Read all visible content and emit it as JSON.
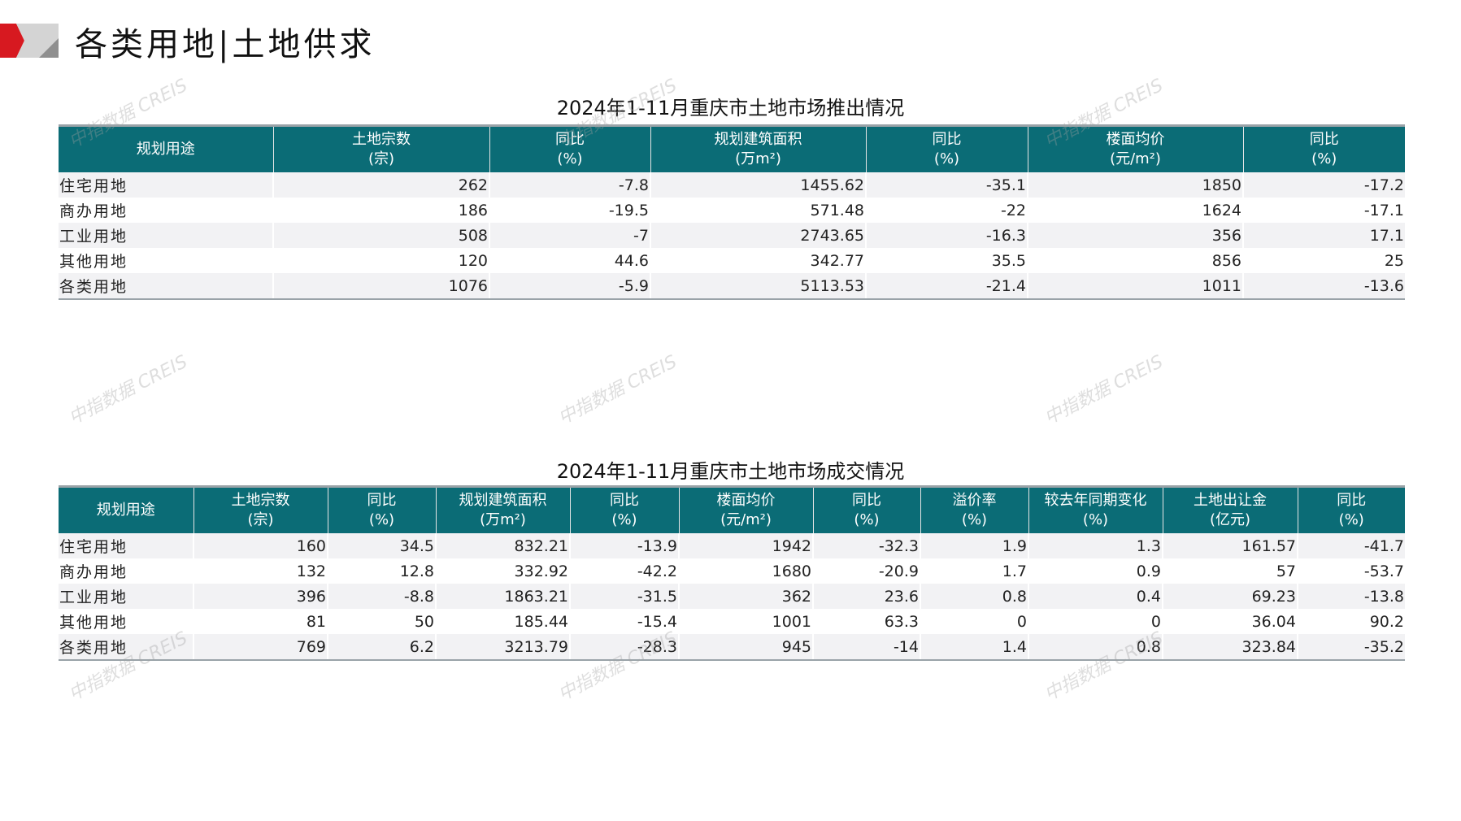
{
  "header": {
    "title": "各类用地|土地供求",
    "accent_color": "#d71920",
    "logo_gray": "#c8c8c8"
  },
  "watermark": "中指数据 CREIS",
  "header_color": "#0b6c76",
  "supply": {
    "title": "2024年1-11月重庆市土地市场推出情况",
    "columns": [
      [
        "规划用途",
        ""
      ],
      [
        "土地宗数",
        "(宗)"
      ],
      [
        "同比",
        "(%)"
      ],
      [
        "规划建筑面积",
        "(万m²)"
      ],
      [
        "同比",
        "(%)"
      ],
      [
        "楼面均价",
        "(元/m²)"
      ],
      [
        "同比",
        "(%)"
      ]
    ],
    "rows": [
      [
        "住宅用地",
        "262",
        "-7.8",
        "1455.62",
        "-35.1",
        "1850",
        "-17.2"
      ],
      [
        "商办用地",
        "186",
        "-19.5",
        "571.48",
        "-22",
        "1624",
        "-17.1"
      ],
      [
        "工业用地",
        "508",
        "-7",
        "2743.65",
        "-16.3",
        "356",
        "17.1"
      ],
      [
        "其他用地",
        "120",
        "44.6",
        "342.77",
        "35.5",
        "856",
        "25"
      ],
      [
        "各类用地",
        "1076",
        "-5.9",
        "5113.53",
        "-21.4",
        "1011",
        "-13.6"
      ]
    ]
  },
  "deals": {
    "title": "2024年1-11月重庆市土地市场成交情况",
    "columns": [
      [
        "规划用途",
        ""
      ],
      [
        "土地宗数",
        "(宗)"
      ],
      [
        "同比",
        "(%)"
      ],
      [
        "规划建筑面积",
        "(万m²)"
      ],
      [
        "同比",
        "(%)"
      ],
      [
        "楼面均价",
        "(元/m²)"
      ],
      [
        "同比",
        "(%)"
      ],
      [
        "溢价率",
        "(%)"
      ],
      [
        "较去年同期变化",
        "(%)"
      ],
      [
        "土地出让金",
        "(亿元)"
      ],
      [
        "同比",
        "(%)"
      ]
    ],
    "rows": [
      [
        "住宅用地",
        "160",
        "34.5",
        "832.21",
        "-13.9",
        "1942",
        "-32.3",
        "1.9",
        "1.3",
        "161.57",
        "-41.7"
      ],
      [
        "商办用地",
        "132",
        "12.8",
        "332.92",
        "-42.2",
        "1680",
        "-20.9",
        "1.7",
        "0.9",
        "57",
        "-53.7"
      ],
      [
        "工业用地",
        "396",
        "-8.8",
        "1863.21",
        "-31.5",
        "362",
        "23.6",
        "0.8",
        "0.4",
        "69.23",
        "-13.8"
      ],
      [
        "其他用地",
        "81",
        "50",
        "185.44",
        "-15.4",
        "1001",
        "63.3",
        "0",
        "0",
        "36.04",
        "90.2"
      ],
      [
        "各类用地",
        "769",
        "6.2",
        "3213.79",
        "-28.3",
        "945",
        "-14",
        "1.4",
        "0.8",
        "323.84",
        "-35.2"
      ]
    ]
  }
}
